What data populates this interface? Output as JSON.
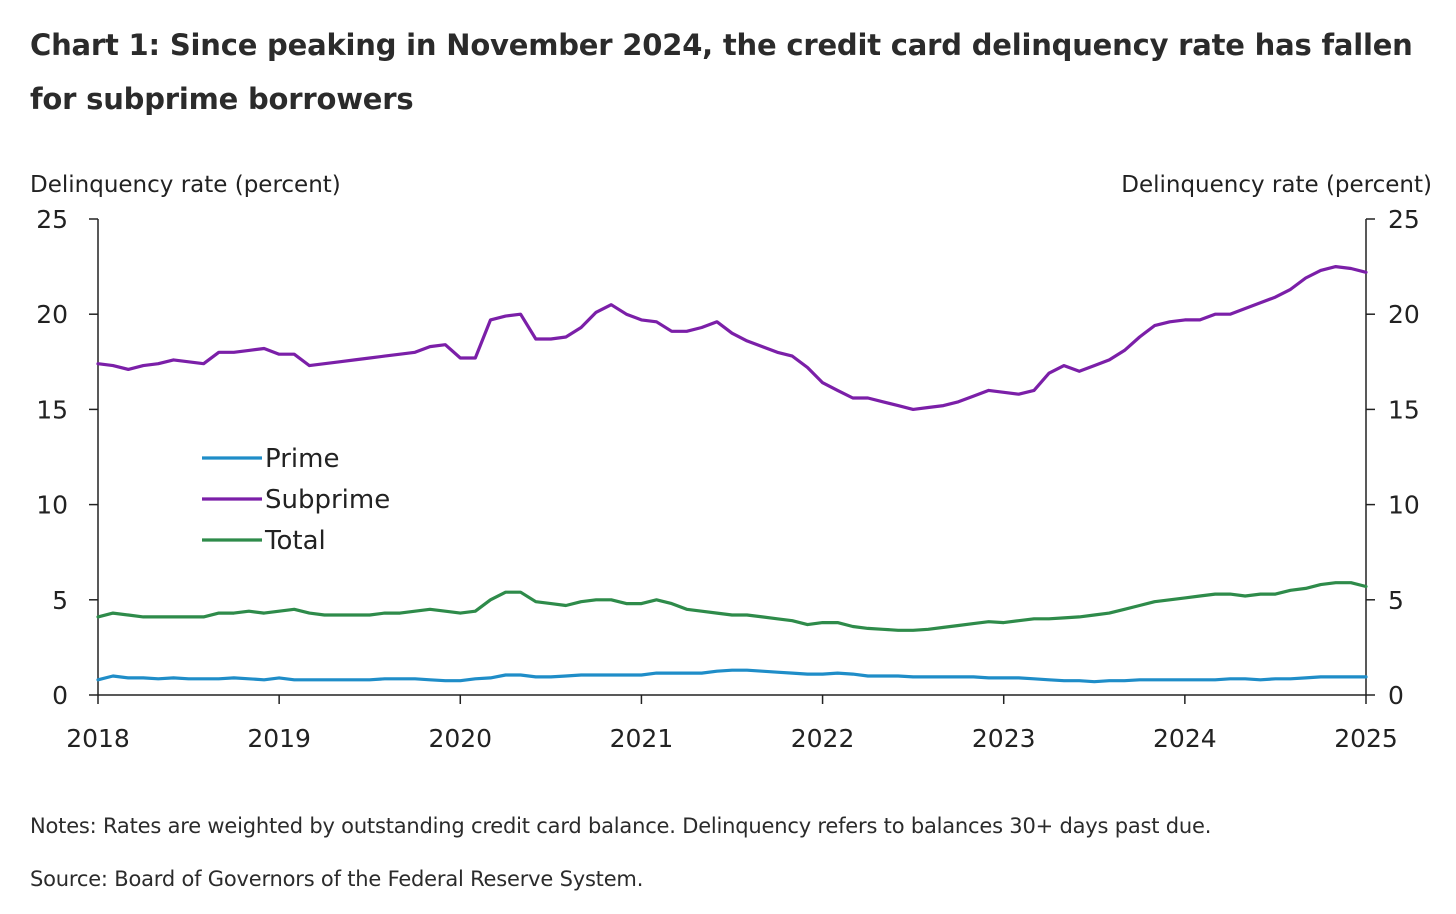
{
  "title": "Chart 1: Since peaking in November 2024, the credit card delinquency rate has fallen for subprime borrowers",
  "notes": "Notes: Rates are weighted by outstanding credit card balance. Delinquency refers to balances 30+ days past due.",
  "source": "Source: Board of Governors of the Federal Reserve System.",
  "chart_data": {
    "type": "line",
    "ylabel_left": "Delinquency rate (percent)",
    "ylabel_right": "Delinquency rate (percent)",
    "ylim": [
      0,
      25
    ],
    "y_ticks": [
      0,
      5,
      10,
      15,
      20,
      25
    ],
    "xlim": [
      2018,
      2025
    ],
    "x_ticks": [
      "2018",
      "2019",
      "2020",
      "2021",
      "2022",
      "2023",
      "2024",
      "2025"
    ],
    "grid": false,
    "legend_position": "center-left",
    "x": [
      2018.0,
      2018.083,
      2018.167,
      2018.25,
      2018.333,
      2018.417,
      2018.5,
      2018.583,
      2018.667,
      2018.75,
      2018.833,
      2018.917,
      2019.0,
      2019.083,
      2019.167,
      2019.25,
      2019.333,
      2019.417,
      2019.5,
      2019.583,
      2019.667,
      2019.75,
      2019.833,
      2019.917,
      2020.0,
      2020.083,
      2020.167,
      2020.25,
      2020.333,
      2020.417,
      2020.5,
      2020.583,
      2020.667,
      2020.75,
      2020.833,
      2020.917,
      2021.0,
      2021.083,
      2021.167,
      2021.25,
      2021.333,
      2021.417,
      2021.5,
      2021.583,
      2021.667,
      2021.75,
      2021.833,
      2021.917,
      2022.0,
      2022.083,
      2022.167,
      2022.25,
      2022.333,
      2022.417,
      2022.5,
      2022.583,
      2022.667,
      2022.75,
      2022.833,
      2022.917,
      2023.0,
      2023.083,
      2023.167,
      2023.25,
      2023.333,
      2023.417,
      2023.5,
      2023.583,
      2023.667,
      2023.75,
      2023.833,
      2023.917,
      2024.0,
      2024.083,
      2024.167,
      2024.25,
      2024.333,
      2024.417,
      2024.5,
      2024.583,
      2024.667,
      2024.75,
      2024.833,
      2024.917,
      2025.0
    ],
    "series": [
      {
        "name": "Prime",
        "color": "#1f8dc8",
        "values": [
          0.8,
          1.0,
          0.9,
          0.9,
          0.85,
          0.9,
          0.85,
          0.85,
          0.85,
          0.9,
          0.85,
          0.8,
          0.9,
          0.8,
          0.8,
          0.8,
          0.8,
          0.8,
          0.8,
          0.85,
          0.85,
          0.85,
          0.8,
          0.75,
          0.75,
          0.85,
          0.9,
          1.05,
          1.05,
          0.95,
          0.95,
          1.0,
          1.05,
          1.05,
          1.05,
          1.05,
          1.05,
          1.15,
          1.15,
          1.15,
          1.15,
          1.25,
          1.3,
          1.3,
          1.25,
          1.2,
          1.15,
          1.1,
          1.1,
          1.15,
          1.1,
          1.0,
          1.0,
          1.0,
          0.95,
          0.95,
          0.95,
          0.95,
          0.95,
          0.9,
          0.9,
          0.9,
          0.85,
          0.8,
          0.75,
          0.75,
          0.7,
          0.75,
          0.75,
          0.8,
          0.8,
          0.8,
          0.8,
          0.8,
          0.8,
          0.85,
          0.85,
          0.8,
          0.85,
          0.85,
          0.9,
          0.95,
          0.95,
          0.95,
          0.95
        ]
      },
      {
        "name": "Subprime",
        "color": "#7b1fa8",
        "values": [
          17.4,
          17.3,
          17.1,
          17.3,
          17.4,
          17.6,
          17.5,
          17.4,
          18.0,
          18.0,
          18.1,
          18.2,
          17.9,
          17.9,
          17.3,
          17.4,
          17.5,
          17.6,
          17.7,
          17.8,
          17.9,
          18.0,
          18.3,
          18.4,
          17.7,
          17.7,
          19.7,
          19.9,
          20.0,
          18.7,
          18.7,
          18.8,
          19.3,
          20.1,
          20.5,
          20.0,
          19.7,
          19.6,
          19.1,
          19.1,
          19.3,
          19.6,
          19.0,
          18.6,
          18.3,
          18.0,
          17.8,
          17.2,
          16.4,
          16.0,
          15.6,
          15.6,
          15.4,
          15.2,
          15.0,
          15.1,
          15.2,
          15.4,
          15.7,
          16.0,
          15.9,
          15.8,
          16.0,
          16.9,
          17.3,
          17.0,
          17.3,
          17.6,
          18.1,
          18.8,
          19.4,
          19.6,
          19.7,
          19.7,
          20.0,
          20.0,
          20.3,
          20.6,
          20.9,
          21.3,
          21.9,
          22.3,
          22.5,
          22.4,
          22.2
        ]
      },
      {
        "name": "Total",
        "color": "#2e8b4a",
        "values": [
          4.1,
          4.3,
          4.2,
          4.1,
          4.1,
          4.1,
          4.1,
          4.1,
          4.3,
          4.3,
          4.4,
          4.3,
          4.4,
          4.5,
          4.3,
          4.2,
          4.2,
          4.2,
          4.2,
          4.3,
          4.3,
          4.4,
          4.5,
          4.4,
          4.3,
          4.4,
          5.0,
          5.4,
          5.4,
          4.9,
          4.8,
          4.7,
          4.9,
          5.0,
          5.0,
          4.8,
          4.8,
          5.0,
          4.8,
          4.5,
          4.4,
          4.3,
          4.2,
          4.2,
          4.1,
          4.0,
          3.9,
          3.7,
          3.8,
          3.8,
          3.6,
          3.5,
          3.45,
          3.4,
          3.4,
          3.45,
          3.55,
          3.65,
          3.75,
          3.85,
          3.8,
          3.9,
          4.0,
          4.0,
          4.05,
          4.1,
          4.2,
          4.3,
          4.5,
          4.7,
          4.9,
          5.0,
          5.1,
          5.2,
          5.3,
          5.3,
          5.2,
          5.3,
          5.3,
          5.5,
          5.6,
          5.8,
          5.9,
          5.9,
          5.7
        ]
      }
    ]
  }
}
